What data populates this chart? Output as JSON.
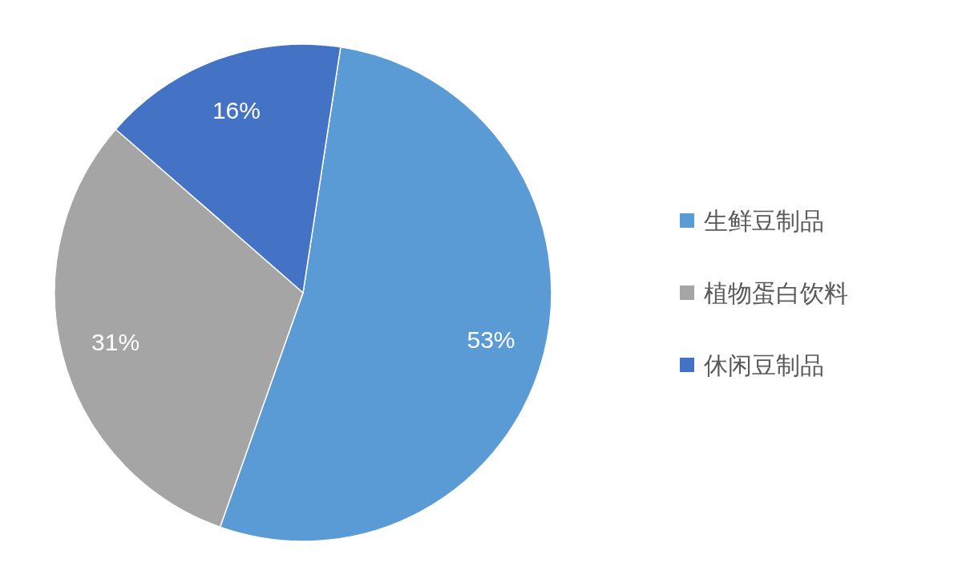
{
  "chart_data": {
    "type": "pie",
    "categories": [
      "生鲜豆制品",
      "植物蛋白饮料",
      "休闲豆制品"
    ],
    "values": [
      53,
      31,
      16
    ],
    "colors": [
      "#5b9bd5",
      "#a5a5a5",
      "#4472c4"
    ],
    "value_labels": [
      "53%",
      "31%",
      "16%"
    ],
    "legend": "right"
  }
}
